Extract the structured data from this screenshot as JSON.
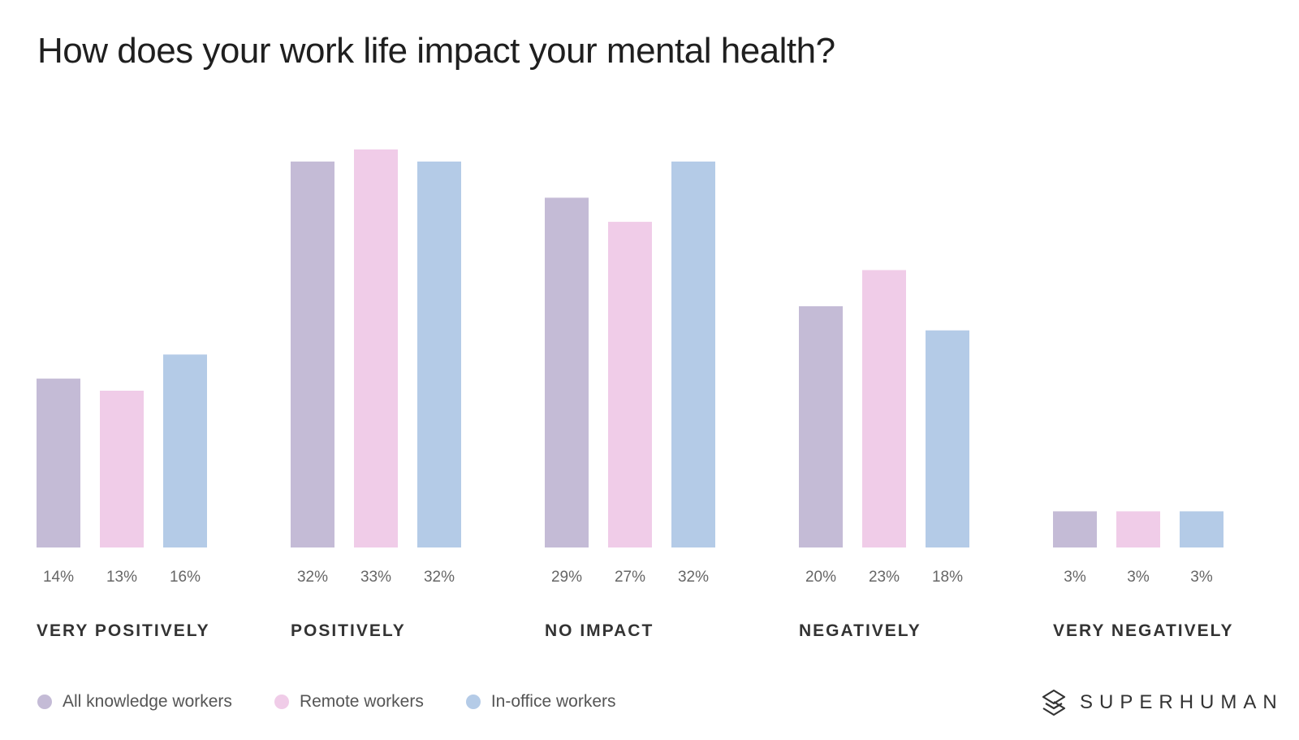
{
  "chart_data": {
    "type": "bar",
    "title": "How does your work life impact your mental health?",
    "categories": [
      "VERY POSITIVELY",
      "POSITIVELY",
      "NO IMPACT",
      "NEGATIVELY",
      "VERY NEGATIVELY"
    ],
    "series": [
      {
        "name": "All knowledge workers",
        "color": "#c4bbd6",
        "values": [
          14,
          32,
          29,
          20,
          3
        ],
        "labels": [
          "14%",
          "32%",
          "29%",
          "20%",
          "3%"
        ]
      },
      {
        "name": "Remote workers",
        "color": "#f0cce8",
        "values": [
          13,
          33,
          27,
          23,
          3
        ],
        "labels": [
          "13%",
          "33%",
          "27%",
          "23%",
          "3%"
        ]
      },
      {
        "name": "In-office workers",
        "color": "#b4cbe7",
        "values": [
          16,
          32,
          32,
          18,
          3
        ],
        "labels": [
          "16%",
          "32%",
          "32%",
          "18%",
          "3%"
        ]
      }
    ],
    "ylim": [
      0,
      33
    ],
    "legend_position": "bottom-left",
    "grid": false
  },
  "brand": {
    "name": "SUPERHUMAN",
    "icon": "superhuman-logo-icon"
  }
}
